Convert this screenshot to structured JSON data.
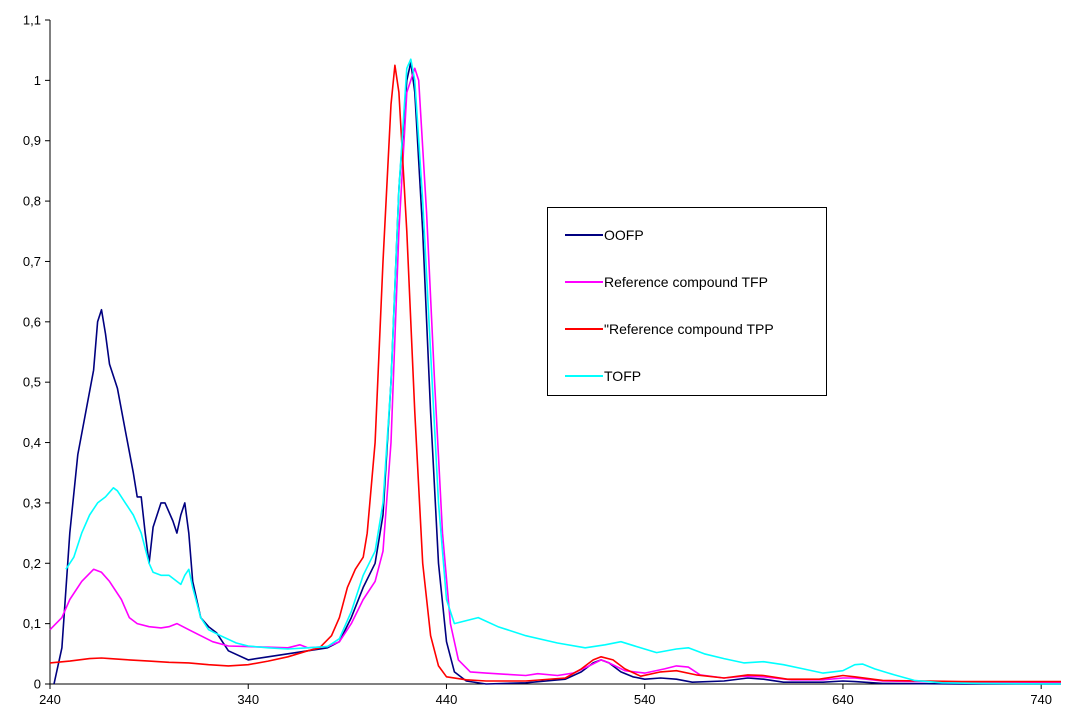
{
  "chart_data": {
    "type": "line",
    "title": "",
    "xlabel": "",
    "ylabel": "",
    "xlim": [
      240,
      750
    ],
    "ylim": [
      0,
      1.1
    ],
    "x_ticks": [
      "240",
      "340",
      "440",
      "540",
      "640",
      "740"
    ],
    "y_ticks": [
      "0",
      "0,1",
      "0,2",
      "0,3",
      "0,4",
      "0,5",
      "0,6",
      "0,7",
      "0,8",
      "0,9",
      "1",
      "1,1"
    ],
    "grid": false,
    "legend_position": "center-right",
    "series": [
      {
        "name": "OOFP",
        "color": "#000080",
        "points": [
          [
            242,
            0
          ],
          [
            246,
            0.06
          ],
          [
            250,
            0.25
          ],
          [
            254,
            0.38
          ],
          [
            258,
            0.45
          ],
          [
            262,
            0.52
          ],
          [
            264,
            0.6
          ],
          [
            266,
            0.62
          ],
          [
            268,
            0.58
          ],
          [
            270,
            0.53
          ],
          [
            274,
            0.49
          ],
          [
            278,
            0.42
          ],
          [
            282,
            0.35
          ],
          [
            284,
            0.31
          ],
          [
            286,
            0.31
          ],
          [
            288,
            0.25
          ],
          [
            290,
            0.2
          ],
          [
            292,
            0.26
          ],
          [
            296,
            0.3
          ],
          [
            298,
            0.3
          ],
          [
            302,
            0.27
          ],
          [
            304,
            0.25
          ],
          [
            306,
            0.28
          ],
          [
            308,
            0.3
          ],
          [
            310,
            0.25
          ],
          [
            312,
            0.17
          ],
          [
            316,
            0.11
          ],
          [
            320,
            0.095
          ],
          [
            324,
            0.085
          ],
          [
            330,
            0.055
          ],
          [
            340,
            0.04
          ],
          [
            350,
            0.045
          ],
          [
            360,
            0.05
          ],
          [
            370,
            0.055
          ],
          [
            380,
            0.06
          ],
          [
            386,
            0.07
          ],
          [
            392,
            0.11
          ],
          [
            398,
            0.16
          ],
          [
            404,
            0.2
          ],
          [
            408,
            0.28
          ],
          [
            412,
            0.5
          ],
          [
            416,
            0.82
          ],
          [
            420,
            1.0
          ],
          [
            422,
            1.03
          ],
          [
            424,
            0.98
          ],
          [
            428,
            0.75
          ],
          [
            432,
            0.45
          ],
          [
            436,
            0.2
          ],
          [
            440,
            0.07
          ],
          [
            444,
            0.02
          ],
          [
            450,
            0.005
          ],
          [
            460,
            0
          ],
          [
            480,
            0.002
          ],
          [
            500,
            0.008
          ],
          [
            508,
            0.02
          ],
          [
            514,
            0.035
          ],
          [
            518,
            0.04
          ],
          [
            522,
            0.035
          ],
          [
            528,
            0.02
          ],
          [
            534,
            0.012
          ],
          [
            540,
            0.008
          ],
          [
            548,
            0.01
          ],
          [
            556,
            0.008
          ],
          [
            564,
            0.003
          ],
          [
            580,
            0.005
          ],
          [
            592,
            0.01
          ],
          [
            600,
            0.008
          ],
          [
            610,
            0.003
          ],
          [
            630,
            0.003
          ],
          [
            640,
            0.005
          ],
          [
            646,
            0.004
          ],
          [
            660,
            0.001
          ],
          [
            700,
            0
          ],
          [
            750,
            0
          ]
        ]
      },
      {
        "name": "Reference compound TFP",
        "color": "#ff00ff",
        "points": [
          [
            240,
            0.09
          ],
          [
            246,
            0.11
          ],
          [
            250,
            0.14
          ],
          [
            256,
            0.17
          ],
          [
            262,
            0.19
          ],
          [
            266,
            0.185
          ],
          [
            270,
            0.17
          ],
          [
            276,
            0.14
          ],
          [
            280,
            0.11
          ],
          [
            284,
            0.1
          ],
          [
            290,
            0.095
          ],
          [
            296,
            0.093
          ],
          [
            300,
            0.095
          ],
          [
            304,
            0.1
          ],
          [
            310,
            0.09
          ],
          [
            316,
            0.08
          ],
          [
            322,
            0.07
          ],
          [
            330,
            0.063
          ],
          [
            340,
            0.062
          ],
          [
            350,
            0.061
          ],
          [
            360,
            0.06
          ],
          [
            366,
            0.065
          ],
          [
            370,
            0.06
          ],
          [
            380,
            0.062
          ],
          [
            386,
            0.07
          ],
          [
            392,
            0.1
          ],
          [
            398,
            0.14
          ],
          [
            404,
            0.17
          ],
          [
            408,
            0.22
          ],
          [
            412,
            0.4
          ],
          [
            416,
            0.75
          ],
          [
            420,
            0.98
          ],
          [
            424,
            1.02
          ],
          [
            426,
            1.0
          ],
          [
            430,
            0.78
          ],
          [
            434,
            0.5
          ],
          [
            438,
            0.25
          ],
          [
            442,
            0.1
          ],
          [
            446,
            0.04
          ],
          [
            452,
            0.02
          ],
          [
            460,
            0.018
          ],
          [
            470,
            0.016
          ],
          [
            480,
            0.014
          ],
          [
            486,
            0.017
          ],
          [
            496,
            0.014
          ],
          [
            504,
            0.018
          ],
          [
            512,
            0.03
          ],
          [
            518,
            0.04
          ],
          [
            522,
            0.035
          ],
          [
            530,
            0.022
          ],
          [
            540,
            0.018
          ],
          [
            550,
            0.025
          ],
          [
            556,
            0.03
          ],
          [
            562,
            0.028
          ],
          [
            568,
            0.015
          ],
          [
            580,
            0.01
          ],
          [
            590,
            0.013
          ],
          [
            600,
            0.012
          ],
          [
            614,
            0.007
          ],
          [
            630,
            0.007
          ],
          [
            640,
            0.01
          ],
          [
            646,
            0.01
          ],
          [
            660,
            0.005
          ],
          [
            700,
            0.003
          ],
          [
            750,
            0.003
          ]
        ]
      },
      {
        "name": "\"Reference compound TPP",
        "color": "#ff0000",
        "points": [
          [
            240,
            0.035
          ],
          [
            250,
            0.038
          ],
          [
            260,
            0.042
          ],
          [
            266,
            0.043
          ],
          [
            270,
            0.042
          ],
          [
            280,
            0.04
          ],
          [
            290,
            0.038
          ],
          [
            300,
            0.036
          ],
          [
            310,
            0.035
          ],
          [
            320,
            0.032
          ],
          [
            330,
            0.03
          ],
          [
            340,
            0.032
          ],
          [
            350,
            0.038
          ],
          [
            360,
            0.045
          ],
          [
            370,
            0.055
          ],
          [
            376,
            0.06
          ],
          [
            382,
            0.08
          ],
          [
            386,
            0.11
          ],
          [
            390,
            0.16
          ],
          [
            394,
            0.19
          ],
          [
            398,
            0.21
          ],
          [
            400,
            0.25
          ],
          [
            404,
            0.4
          ],
          [
            408,
            0.7
          ],
          [
            412,
            0.96
          ],
          [
            414,
            1.025
          ],
          [
            416,
            0.98
          ],
          [
            420,
            0.75
          ],
          [
            424,
            0.45
          ],
          [
            428,
            0.2
          ],
          [
            432,
            0.08
          ],
          [
            436,
            0.03
          ],
          [
            440,
            0.012
          ],
          [
            450,
            0.007
          ],
          [
            460,
            0.005
          ],
          [
            480,
            0.005
          ],
          [
            500,
            0.01
          ],
          [
            508,
            0.025
          ],
          [
            514,
            0.04
          ],
          [
            518,
            0.045
          ],
          [
            524,
            0.04
          ],
          [
            530,
            0.025
          ],
          [
            538,
            0.013
          ],
          [
            548,
            0.02
          ],
          [
            556,
            0.022
          ],
          [
            566,
            0.015
          ],
          [
            580,
            0.01
          ],
          [
            592,
            0.015
          ],
          [
            600,
            0.014
          ],
          [
            612,
            0.008
          ],
          [
            628,
            0.008
          ],
          [
            640,
            0.014
          ],
          [
            646,
            0.012
          ],
          [
            660,
            0.006
          ],
          [
            700,
            0.004
          ],
          [
            750,
            0.004
          ]
        ]
      },
      {
        "name": "TOFP",
        "color": "#00ffff",
        "points": [
          [
            248,
            0.19
          ],
          [
            252,
            0.21
          ],
          [
            256,
            0.25
          ],
          [
            260,
            0.28
          ],
          [
            264,
            0.3
          ],
          [
            268,
            0.31
          ],
          [
            272,
            0.325
          ],
          [
            274,
            0.32
          ],
          [
            278,
            0.3
          ],
          [
            282,
            0.28
          ],
          [
            286,
            0.25
          ],
          [
            290,
            0.2
          ],
          [
            292,
            0.185
          ],
          [
            296,
            0.18
          ],
          [
            300,
            0.18
          ],
          [
            304,
            0.17
          ],
          [
            306,
            0.165
          ],
          [
            308,
            0.18
          ],
          [
            310,
            0.19
          ],
          [
            312,
            0.16
          ],
          [
            316,
            0.11
          ],
          [
            320,
            0.09
          ],
          [
            326,
            0.08
          ],
          [
            334,
            0.068
          ],
          [
            340,
            0.063
          ],
          [
            350,
            0.06
          ],
          [
            360,
            0.058
          ],
          [
            370,
            0.06
          ],
          [
            380,
            0.062
          ],
          [
            386,
            0.075
          ],
          [
            392,
            0.12
          ],
          [
            398,
            0.18
          ],
          [
            404,
            0.22
          ],
          [
            408,
            0.3
          ],
          [
            412,
            0.5
          ],
          [
            416,
            0.82
          ],
          [
            420,
            1.02
          ],
          [
            422,
            1.035
          ],
          [
            424,
            1.0
          ],
          [
            428,
            0.8
          ],
          [
            432,
            0.55
          ],
          [
            436,
            0.3
          ],
          [
            440,
            0.14
          ],
          [
            444,
            0.1
          ],
          [
            450,
            0.105
          ],
          [
            456,
            0.11
          ],
          [
            466,
            0.095
          ],
          [
            480,
            0.08
          ],
          [
            496,
            0.068
          ],
          [
            510,
            0.06
          ],
          [
            520,
            0.065
          ],
          [
            528,
            0.07
          ],
          [
            536,
            0.062
          ],
          [
            546,
            0.052
          ],
          [
            556,
            0.058
          ],
          [
            562,
            0.06
          ],
          [
            570,
            0.05
          ],
          [
            580,
            0.042
          ],
          [
            590,
            0.035
          ],
          [
            600,
            0.037
          ],
          [
            610,
            0.032
          ],
          [
            620,
            0.025
          ],
          [
            630,
            0.018
          ],
          [
            640,
            0.022
          ],
          [
            646,
            0.032
          ],
          [
            650,
            0.033
          ],
          [
            656,
            0.025
          ],
          [
            666,
            0.015
          ],
          [
            676,
            0.006
          ],
          [
            690,
            0.002
          ],
          [
            710,
            0.001
          ],
          [
            750,
            0
          ]
        ]
      }
    ]
  }
}
